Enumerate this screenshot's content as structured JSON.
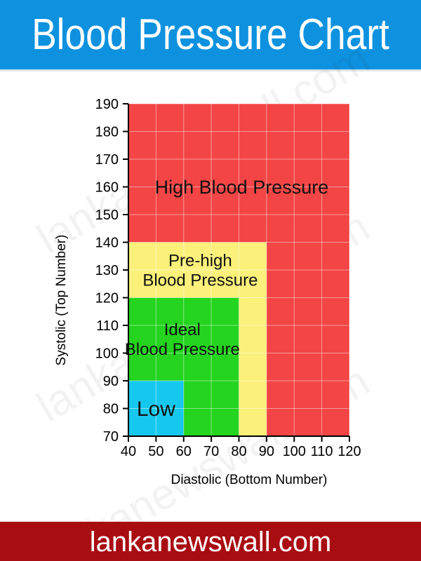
{
  "header": {
    "title": "Blood Pressure Chart",
    "bg_color": "#0e92df"
  },
  "footer": {
    "site": "lankanewswall.com",
    "bg_color": "#a80d12"
  },
  "watermark": "lankanewswall.com",
  "chart_data": {
    "type": "area",
    "xlabel": "Diastolic (Bottom Number)",
    "ylabel": "Systolic (Top Number)",
    "xlim": [
      40,
      120
    ],
    "ylim": [
      70,
      190
    ],
    "x_ticks": [
      40,
      50,
      60,
      70,
      80,
      90,
      100,
      110,
      120
    ],
    "y_ticks": [
      70,
      80,
      90,
      100,
      110,
      120,
      130,
      140,
      150,
      160,
      170,
      180,
      190
    ],
    "grid": true,
    "regions": [
      {
        "name": "high",
        "label": [
          "High Blood Pressure"
        ],
        "x": [
          40,
          120
        ],
        "y": [
          70,
          190
        ],
        "color": "#f34545",
        "label_at": [
          81,
          160
        ]
      },
      {
        "name": "pre-high",
        "label": [
          "Pre-high",
          "Blood Pressure"
        ],
        "x": [
          40,
          90
        ],
        "y": [
          70,
          140
        ],
        "color": "#fbf07a",
        "label_at": [
          66,
          130
        ]
      },
      {
        "name": "ideal",
        "label": [
          "Ideal",
          "Blood Pressure"
        ],
        "x": [
          40,
          80
        ],
        "y": [
          70,
          120
        ],
        "color": "#24d41e",
        "label_at": [
          59.5,
          105
        ]
      },
      {
        "name": "low",
        "label": [
          "Low"
        ],
        "x": [
          40,
          60
        ],
        "y": [
          70,
          90
        ],
        "color": "#17c8ee",
        "label_at": [
          50,
          80
        ]
      }
    ]
  }
}
